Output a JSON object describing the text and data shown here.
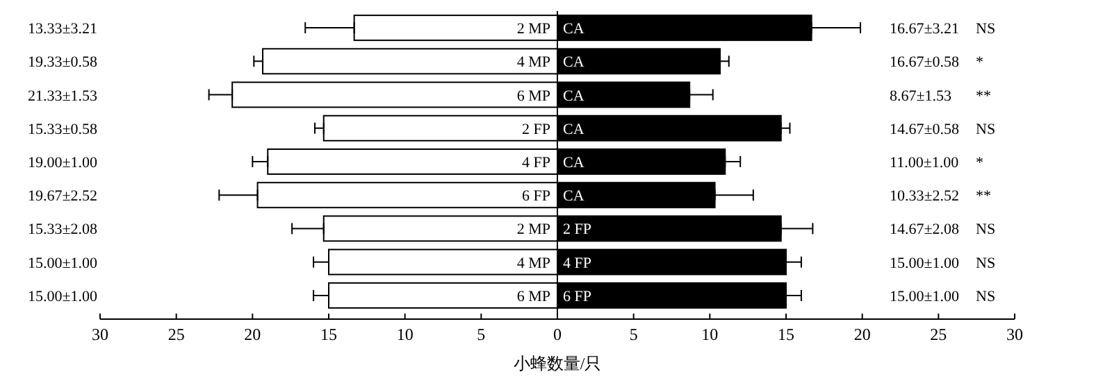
{
  "chart_data": {
    "type": "bar",
    "orientation": "horizontal",
    "stacked": true,
    "xlabel": "小蜂数量/只",
    "categories": [
      null,
      null,
      null,
      null,
      null,
      null,
      null,
      null,
      null
    ],
    "xlim": [
      -30,
      30
    ],
    "xticks": [
      {
        "value": -30,
        "label": "30"
      },
      {
        "value": -25,
        "label": "25"
      },
      {
        "value": -20,
        "label": "20"
      },
      {
        "value": -15,
        "label": "15"
      },
      {
        "value": -10,
        "label": "10"
      },
      {
        "value": -5,
        "label": "5"
      },
      0,
      5,
      10,
      15,
      20,
      25,
      30
    ],
    "series": [
      {
        "color": "#ffffff",
        "values": [
          -13.33,
          -19.33,
          -21.33,
          -15.33,
          -19,
          -19.67,
          -15.33,
          -15,
          -15
        ],
        "errors": [
          [
            -16.54,
            -13.33
          ],
          [
            -19.91,
            -19.33
          ],
          [
            -22.86,
            -21.33
          ],
          [
            -15.91,
            -15.33
          ],
          [
            -20,
            -19
          ],
          [
            -22.19,
            -19.67
          ],
          [
            -17.41,
            -15.33
          ],
          [
            -16,
            -15
          ],
          [
            -16,
            -15
          ]
        ]
      },
      {
        "color": "#000000",
        "values": [
          16.67,
          10.67,
          8.67,
          14.67,
          11,
          10.33,
          14.67,
          15,
          15
        ],
        "errors": [
          [
            16.67,
            19.88
          ],
          [
            10.67,
            11.25
          ],
          [
            8.67,
            10.2
          ],
          [
            14.67,
            15.25
          ],
          [
            11,
            12
          ],
          [
            10.33,
            12.85
          ],
          [
            14.67,
            16.75
          ],
          [
            15,
            16
          ],
          [
            15,
            16
          ]
        ]
      }
    ],
    "annotations": [
      "13.33±3.21",
      "2 MP",
      "CA",
      "16.67±3.21",
      "NS",
      "19.33±0.58",
      "4 MP",
      "CA",
      "16.67±0.58",
      "*",
      "21.33±1.53",
      "6 MP",
      "CA",
      "8.67±1.53",
      "**",
      "15.33±0.58",
      "2 FP",
      "CA",
      "14.67±0.58",
      "NS",
      "19.00±1.00",
      "4 FP",
      "CA",
      "11.00±1.00",
      "*",
      "19.67±2.52",
      "6 FP",
      "CA",
      "10.33±2.52",
      "**",
      "15.33±2.08",
      "2 MP",
      "2 FP",
      "14.67±2.08",
      "NS",
      "15.00±1.00",
      "4 MP",
      "4 FP",
      "15.00±1.00",
      "NS",
      "15.00±1.00",
      "6 MP",
      "6 FP",
      "15.00±1.00",
      "NS"
    ]
  }
}
